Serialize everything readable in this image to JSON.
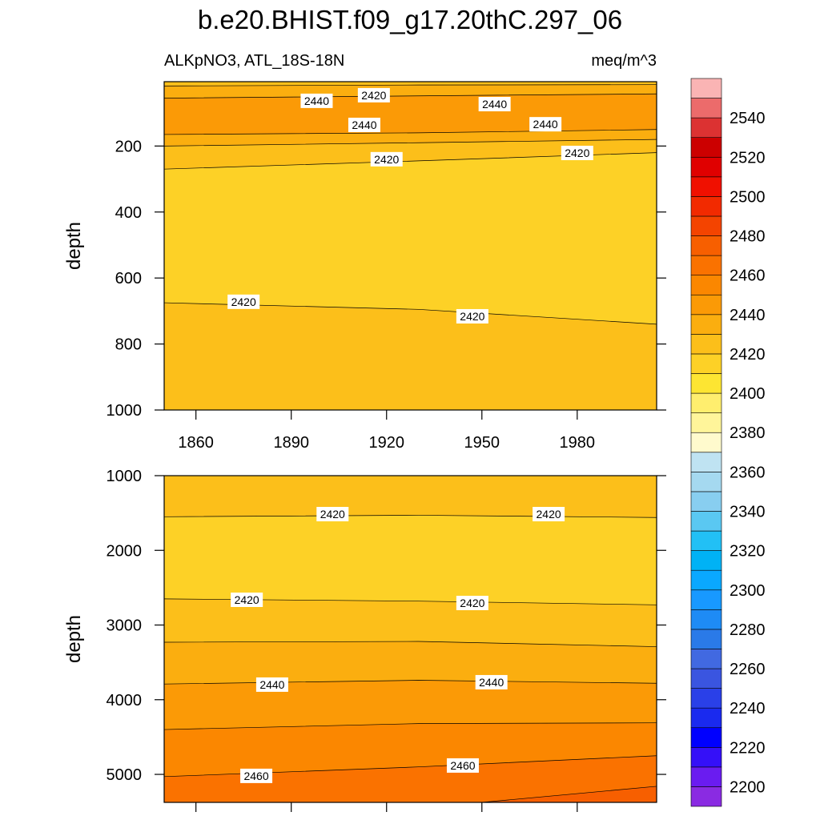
{
  "chart_data": {
    "type": "contour",
    "title": "b.e20.BHIST.f09_g17.20thC.297_06",
    "subtitle_left": "ALKpNO3, ATL_18S-18N",
    "subtitle_right": "meq/m^3",
    "panels": [
      {
        "ylabel": "depth",
        "xlim": [
          1850,
          2005
        ],
        "ylim": [
          1000,
          5
        ],
        "xticks": [
          1860,
          1890,
          1920,
          1950,
          1980
        ],
        "yticks": [
          200,
          400,
          600,
          800,
          1000
        ],
        "xtick_labels": true,
        "lines": [
          {
            "x": [
              1850,
              1930,
              2005
            ],
            "y": [
              18,
              15,
              14
            ]
          },
          {
            "x": [
              1850,
              1930,
              2005
            ],
            "y": [
              55,
              48,
              42
            ]
          },
          {
            "x": [
              1850,
              1930,
              2005
            ],
            "y": [
              165,
              160,
              150
            ]
          },
          {
            "x": [
              1850,
              1930,
              2005
            ],
            "y": [
              200,
              190,
              180
            ]
          },
          {
            "x": [
              1850,
              1930,
              2005
            ],
            "y": [
              270,
              245,
              220
            ]
          },
          {
            "x": [
              1850,
              1930,
              2005
            ],
            "y": [
              675,
              695,
              740
            ]
          }
        ],
        "bands": [
          2420,
          2430,
          2440,
          2430,
          2420,
          2410,
          2420
        ],
        "labels": [
          {
            "value": 2420,
            "x": 1916,
            "y": 46
          },
          {
            "value": 2440,
            "x": 1898,
            "y": 63
          },
          {
            "value": 2440,
            "x": 1954,
            "y": 73
          },
          {
            "value": 2440,
            "x": 1913,
            "y": 136
          },
          {
            "value": 2440,
            "x": 1970,
            "y": 134
          },
          {
            "value": 2420,
            "x": 1920,
            "y": 240
          },
          {
            "value": 2420,
            "x": 1980,
            "y": 221
          },
          {
            "value": 2420,
            "x": 1875,
            "y": 672
          },
          {
            "value": 2420,
            "x": 1947,
            "y": 716
          }
        ]
      },
      {
        "ylabel": "depth",
        "xlim": [
          1850,
          2005
        ],
        "ylim": [
          5375,
          1000
        ],
        "xticks": [
          1860,
          1890,
          1920,
          1950,
          1980
        ],
        "yticks": [
          1000,
          2000,
          3000,
          4000,
          5000
        ],
        "xtick_labels": false,
        "lines": [
          {
            "x": [
              1850,
              1930,
              2005
            ],
            "y": [
              1550,
              1530,
              1560
            ]
          },
          {
            "x": [
              1850,
              1930,
              2005
            ],
            "y": [
              2650,
              2680,
              2730
            ]
          },
          {
            "x": [
              1850,
              1930,
              2005
            ],
            "y": [
              3230,
              3220,
              3290
            ]
          },
          {
            "x": [
              1850,
              1930,
              2005
            ],
            "y": [
              3790,
              3740,
              3780
            ]
          },
          {
            "x": [
              1850,
              1930,
              2005
            ],
            "y": [
              4400,
              4320,
              4310
            ]
          },
          {
            "x": [
              1850,
              1930,
              2005
            ],
            "y": [
              5030,
              4900,
              4750
            ]
          },
          {
            "x": [
              1950,
              2005
            ],
            "y": [
              5375,
              5160
            ]
          }
        ],
        "bands": [
          2420,
          2410,
          2420,
          2430,
          2440,
          2450,
          2460,
          2470
        ],
        "labels": [
          {
            "value": 2420,
            "x": 1903,
            "y": 1515
          },
          {
            "value": 2420,
            "x": 1971,
            "y": 1515
          },
          {
            "value": 2420,
            "x": 1876,
            "y": 2662
          },
          {
            "value": 2420,
            "x": 1947,
            "y": 2705
          },
          {
            "value": 2440,
            "x": 1884,
            "y": 3798
          },
          {
            "value": 2440,
            "x": 1953,
            "y": 3766
          },
          {
            "value": 2460,
            "x": 1879,
            "y": 5020
          },
          {
            "value": 2460,
            "x": 1944,
            "y": 4881
          }
        ]
      }
    ],
    "colorbar": {
      "levels": [
        2200,
        2210,
        2220,
        2230,
        2240,
        2250,
        2260,
        2270,
        2280,
        2290,
        2300,
        2310,
        2320,
        2330,
        2340,
        2350,
        2360,
        2370,
        2380,
        2390,
        2400,
        2410,
        2420,
        2430,
        2440,
        2450,
        2460,
        2470,
        2480,
        2490,
        2500,
        2510,
        2520,
        2530,
        2540,
        2550
      ],
      "colors": [
        "#8a2be2",
        "#6a1cf0",
        "#3510f8",
        "#0000ff",
        "#1a2aef",
        "#2a40e8",
        "#3a55e0",
        "#4169e1",
        "#2a7ae8",
        "#1e8bf5",
        "#1899ff",
        "#0aa8ff",
        "#00b2f5",
        "#22c0f5",
        "#5ac8f2",
        "#88cef0",
        "#a5d9f0",
        "#bfe3f2",
        "#fffacd",
        "#fff59a",
        "#ffee6e",
        "#fde532",
        "#fdd126",
        "#fcbf1a",
        "#fbae0f",
        "#fb9a06",
        "#fb8700",
        "#fa7200",
        "#f75f00",
        "#f44400",
        "#f22a00",
        "#f01000",
        "#e00000",
        "#cc0000",
        "#dc3232",
        "#ec6b6b",
        "#fab4b4"
      ],
      "ticks": [
        2200,
        2220,
        2240,
        2260,
        2280,
        2300,
        2320,
        2340,
        2360,
        2380,
        2400,
        2420,
        2440,
        2460,
        2480,
        2500,
        2520,
        2540
      ]
    }
  }
}
